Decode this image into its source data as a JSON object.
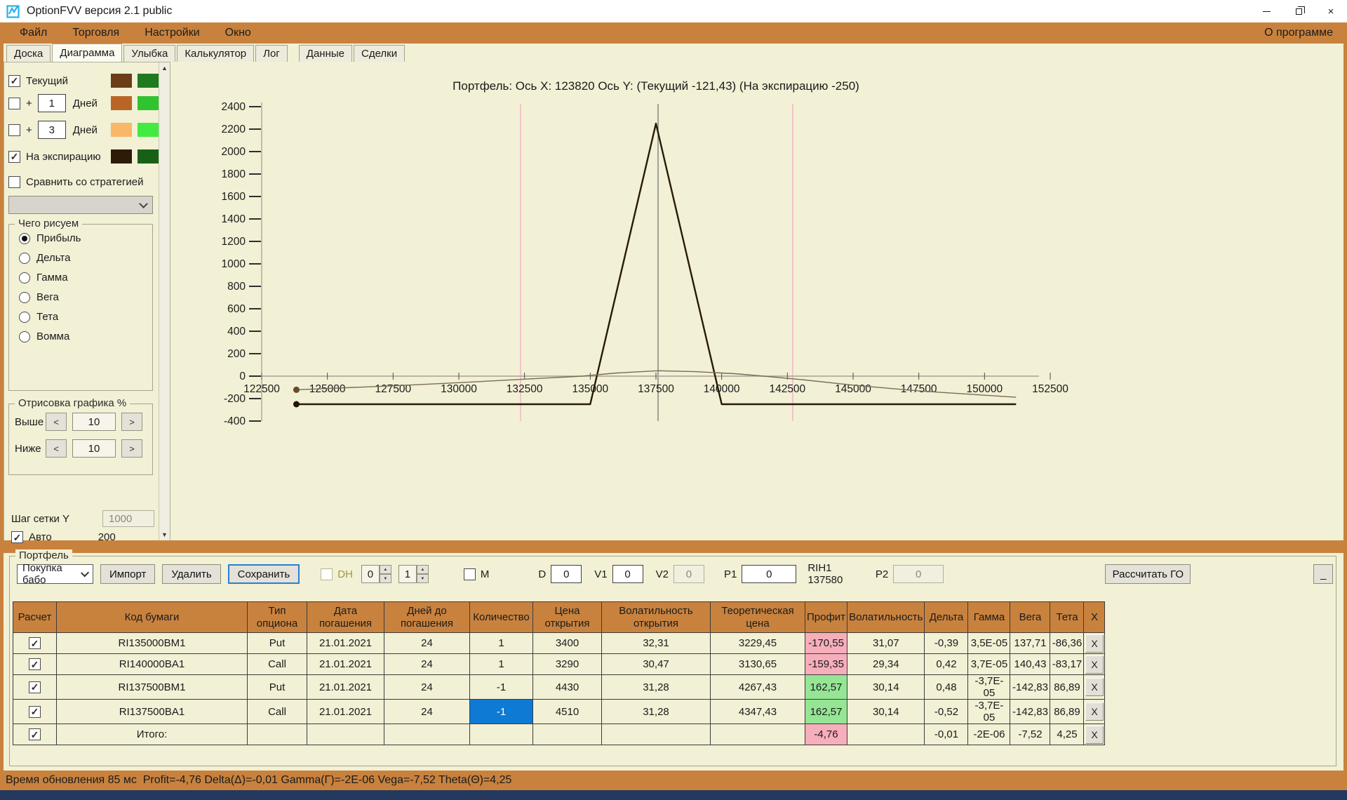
{
  "window": {
    "title": "OptionFVV версия 2.1 public",
    "control_icons": [
      "minimize-icon",
      "restore-icon",
      "close-icon"
    ]
  },
  "menu": {
    "items": [
      "Файл",
      "Торговля",
      "Настройки",
      "Окно"
    ],
    "right": "О программе"
  },
  "tabs": [
    "Доска",
    "Диаграмма",
    "Улыбка",
    "Калькулятор",
    "Лог",
    "Данные",
    "Сделки"
  ],
  "active_tab": "Диаграмма",
  "colors": {
    "accent_orange": "#c8823e",
    "background_beige": "#f2f0d5",
    "selection_blue": "#0e7ad4",
    "loss_pink": "#f6aebb",
    "profit_green": "#95e595"
  },
  "sidebar": {
    "series_rows": [
      {
        "name": "current",
        "label": "Текущий",
        "checked": true,
        "swatches": [
          "#6b3d18",
          "#1f7a1f"
        ]
      },
      {
        "name": "plus-1-day",
        "prefix": "+",
        "value": "1",
        "label": "Дней",
        "checked": false,
        "swatches": [
          "#b96527",
          "#2fc32f"
        ]
      },
      {
        "name": "plus-3-days",
        "prefix": "+",
        "value": "3",
        "label": "Дней",
        "checked": false,
        "swatches": [
          "#f9b768",
          "#42ea42"
        ]
      },
      {
        "name": "expiration",
        "label": "На экспирацию",
        "checked": true,
        "swatches": [
          "#2c1b07",
          "#176117"
        ]
      },
      {
        "name": "compare-strategy",
        "label": "Сравнить со стратегией",
        "checked": false
      }
    ],
    "draw_group": {
      "title": "Чего рисуем",
      "options": [
        "Прибыль",
        "Дельта",
        "Гамма",
        "Вега",
        "Тета",
        "Вомма"
      ],
      "selected": "Прибыль"
    },
    "render_group": {
      "title": "Отрисовка графика %",
      "above_label": "Выше",
      "above_value": "10",
      "below_label": "Ниже",
      "below_value": "10",
      "dec_label": "<",
      "inc_label": ">"
    },
    "grid_step_label": "Шаг сетки Y",
    "grid_step_value": "1000",
    "auto_label": "Авто",
    "auto_checked": true,
    "auto_value": "200"
  },
  "chart_data": {
    "type": "line",
    "title": "Портфель: Ось X: 123820 Ось Y: (Текущий -121,43) (На экспирацию -250)",
    "xlabel": "",
    "ylabel": "",
    "xlim": [
      121800,
      153300
    ],
    "ylim": [
      -450,
      2500
    ],
    "x_ticks": [
      122500,
      125000,
      127500,
      130000,
      132500,
      135000,
      137500,
      140000,
      142500,
      145000,
      147500,
      150000,
      152500
    ],
    "y_ticks": [
      2400,
      2200,
      2000,
      1800,
      1600,
      1400,
      1200,
      1000,
      800,
      600,
      400,
      200,
      0,
      -200,
      -400
    ],
    "grid": false,
    "legend": "none",
    "series": [
      {
        "name": "na-expiratsiyu",
        "color": "#271a08",
        "width": 2.4,
        "points": [
          [
            123820,
            -250
          ],
          [
            135000,
            -250
          ],
          [
            137500,
            2250
          ],
          [
            140000,
            -250
          ],
          [
            151200,
            -250
          ]
        ]
      },
      {
        "name": "tekushchiy",
        "color": "#7a6c57",
        "width": 1.4,
        "points": [
          [
            123820,
            -121.43
          ],
          [
            125000,
            -110
          ],
          [
            127500,
            -86
          ],
          [
            130000,
            -58
          ],
          [
            132500,
            -27
          ],
          [
            134700,
            0
          ],
          [
            136000,
            28
          ],
          [
            137580,
            48
          ],
          [
            139000,
            40
          ],
          [
            140500,
            22
          ],
          [
            141600,
            0
          ],
          [
            143000,
            -30
          ],
          [
            145000,
            -80
          ],
          [
            147500,
            -132
          ],
          [
            150000,
            -170
          ],
          [
            151200,
            -188
          ]
        ]
      }
    ],
    "markers": [
      {
        "x": 123820,
        "y": -121.43,
        "color": "#6b4a26"
      },
      {
        "x": 123820,
        "y": -250,
        "color": "#241503"
      }
    ],
    "vlines": [
      {
        "x": 132350,
        "color": "#f0b8c8",
        "width": 1.5,
        "name": "range-marker-left"
      },
      {
        "x": 142700,
        "color": "#f0b8c8",
        "width": 1.5,
        "name": "range-marker-right"
      },
      {
        "x": 137580,
        "color": "#6e6e6e",
        "width": 1.2,
        "name": "current-price-line"
      }
    ]
  },
  "portfolio_panel": {
    "group_title": "Портфель",
    "strategy_select": "Покупка бабо",
    "import_label": "Импорт",
    "delete_label": "Удалить",
    "save_label": "Сохранить",
    "dh_label": "DH",
    "spin1": "0",
    "spin2": "1",
    "m_label": "M",
    "fields": [
      {
        "label": "D",
        "value": "0"
      },
      {
        "label": "V1",
        "value": "0"
      },
      {
        "label": "V2",
        "value": "0",
        "disabled": true
      },
      {
        "label": "P1",
        "value": "0"
      }
    ],
    "rih_label": "RIH1 137580",
    "p2_label": "P2",
    "p2_value": "0",
    "calc_label": "Рассчитать ГО",
    "min_label": "_"
  },
  "table": {
    "headers": [
      "Расчет",
      "Код бумаги",
      "Тип\nопциона",
      "Дата\nпогашения",
      "Дней до\nпогашения",
      "Количество",
      "Цена\nоткрытия",
      "Волатильность\nоткрытия",
      "Теоретическая\nцена",
      "Профит",
      "Волатильность",
      "Дельта",
      "Гамма",
      "Вега",
      "Тета",
      "X"
    ],
    "remove_label": "X",
    "rows": [
      {
        "calc": true,
        "code": "RI135000BM1",
        "type": "Put",
        "date": "21.01.2021",
        "days": "24",
        "qty": "1",
        "open_price": "3400",
        "open_vol": "32,31",
        "theo": "3229,45",
        "profit": "-170,55",
        "profit_state": "neg",
        "vol": "31,07",
        "delta": "-0,39",
        "gamma": "3,5E-05",
        "vega": "137,71",
        "theta": "-86,36"
      },
      {
        "calc": true,
        "code": "RI140000BA1",
        "type": "Call",
        "date": "21.01.2021",
        "days": "24",
        "qty": "1",
        "open_price": "3290",
        "open_vol": "30,47",
        "theo": "3130,65",
        "profit": "-159,35",
        "profit_state": "neg",
        "vol": "29,34",
        "delta": "0,42",
        "gamma": "3,7E-05",
        "vega": "140,43",
        "theta": "-83,17"
      },
      {
        "calc": true,
        "code": "RI137500BM1",
        "type": "Put",
        "date": "21.01.2021",
        "days": "24",
        "qty": "-1",
        "open_price": "4430",
        "open_vol": "31,28",
        "theo": "4267,43",
        "profit": "162,57",
        "profit_state": "pos",
        "vol": "30,14",
        "delta": "0,48",
        "gamma": "-3,7E-05",
        "vega": "-142,83",
        "theta": "86,89"
      },
      {
        "calc": true,
        "code": "RI137500BA1",
        "type": "Call",
        "date": "21.01.2021",
        "days": "24",
        "qty": "-1",
        "qty_selected": true,
        "open_price": "4510",
        "open_vol": "31,28",
        "theo": "4347,43",
        "profit": "162,57",
        "profit_state": "pos",
        "vol": "30,14",
        "delta": "-0,52",
        "gamma": "-3,7E-05",
        "vega": "-142,83",
        "theta": "86,89"
      },
      {
        "calc": true,
        "code": "Итого:",
        "type": "",
        "date": "",
        "days": "",
        "qty": "",
        "open_price": "",
        "open_vol": "",
        "theo": "",
        "profit": "-4,76",
        "profit_state": "neg",
        "vol": "",
        "delta": "-0,01",
        "gamma": "-2E-06",
        "vega": "-7,52",
        "theta": "4,25",
        "total": true
      }
    ]
  },
  "status_bar": "Время обновления 85 мс  Profit=-4,76 Delta(Δ)=-0,01 Gamma(Γ)=-2E-06 Vega=-7,52 Theta(Θ)=4,25"
}
